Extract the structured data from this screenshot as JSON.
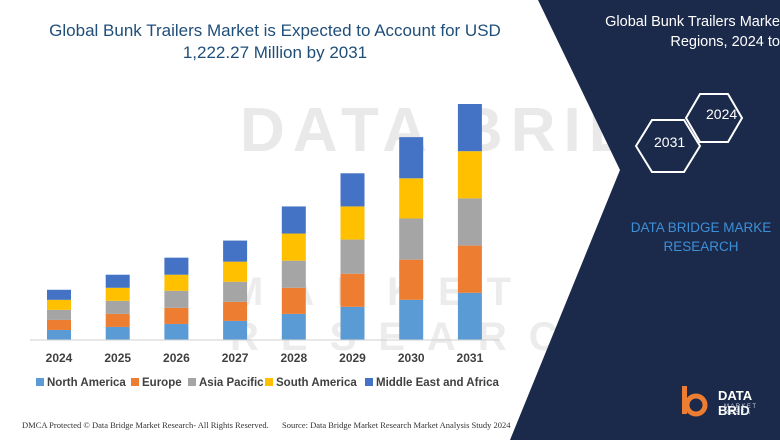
{
  "chart_data": {
    "type": "bar",
    "stacked": true,
    "title": "Global Bunk Trailers Market is Expected to Account for USD 1,222.27 Million by 2031",
    "title_lines": [
      "Global Bunk Trailers Market is Expected to Account for USD",
      "1,222.27 Million by 2031"
    ],
    "categories": [
      "2024",
      "2025",
      "2026",
      "2027",
      "2028",
      "2029",
      "2030",
      "2031"
    ],
    "ylim": [
      0,
      235
    ],
    "grid": false,
    "legend_position": "bottom",
    "series": [
      {
        "name": "North America",
        "color": "#5b9bd5",
        "values": [
          10,
          13,
          16,
          19,
          26,
          33,
          40,
          47
        ]
      },
      {
        "name": "Europe",
        "color": "#ed7d31",
        "values": [
          10,
          13,
          16,
          19,
          26,
          33,
          40,
          47
        ]
      },
      {
        "name": "Asia Pacific",
        "color": "#a5a5a5",
        "values": [
          10,
          13,
          17,
          20,
          27,
          34,
          41,
          47
        ]
      },
      {
        "name": "South America",
        "color": "#ffc000",
        "values": [
          10,
          13,
          16,
          20,
          27,
          33,
          40,
          47
        ]
      },
      {
        "name": "Middle East and Africa",
        "color": "#4472c4",
        "values": [
          10,
          13,
          17,
          21,
          27,
          33,
          41,
          47
        ]
      }
    ]
  },
  "panel": {
    "title_lines": [
      "Global Bunk Trailers Marke",
      "Regions, 2024 to"
    ],
    "hex_labels": [
      "2024",
      "2031"
    ],
    "brand_lines": [
      "DATA BRIDGE MARKE",
      "RESEARCH"
    ],
    "logo_text": "DATA BRID",
    "logo_sub": "MARKET RESEA",
    "bg_color": "#1b2a4a"
  },
  "watermark": {
    "main": "DATA BRIDGE",
    "sub": "MARKET RESEARCH"
  },
  "footer": {
    "left": "DMCA Protected © Data Bridge Market Research-  All Rights Reserved.",
    "right": "Source: Data Bridge Market Research  Market Analysis Study 2024"
  }
}
